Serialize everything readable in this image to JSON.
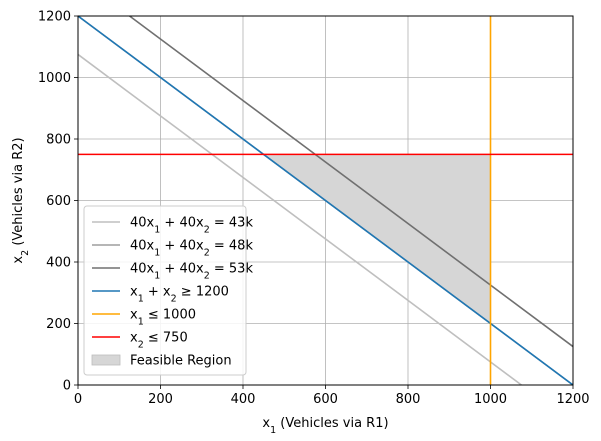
{
  "chart_data": {
    "type": "line",
    "title": "",
    "xlabel": {
      "prefix": "x",
      "sub": "1",
      "suffix": " (Vehicles via R1)"
    },
    "ylabel": {
      "prefix": "x",
      "sub": "2",
      "suffix": " (Vehicles via R2)"
    },
    "xlim": [
      0,
      1200
    ],
    "ylim": [
      0,
      1200
    ],
    "xticks": [
      0,
      200,
      400,
      600,
      800,
      1000,
      1200
    ],
    "yticks": [
      0,
      200,
      400,
      600,
      800,
      1000,
      1200
    ],
    "grid": true,
    "legend_position": "lower-left",
    "series": [
      {
        "kind": "isoline",
        "c": 43000,
        "color": "#bfbfbf",
        "label": [
          {
            "t": "40x"
          },
          {
            "s": "1"
          },
          {
            "t": " + 40x"
          },
          {
            "s": "2"
          },
          {
            "t": " = 43k"
          }
        ]
      },
      {
        "kind": "isoline",
        "c": 48000,
        "color": "#9e9e9e",
        "label": [
          {
            "t": "40x"
          },
          {
            "s": "1"
          },
          {
            "t": " + 40x"
          },
          {
            "s": "2"
          },
          {
            "t": " = 48k"
          }
        ]
      },
      {
        "kind": "isoline",
        "c": 53000,
        "color": "#707070",
        "label": [
          {
            "t": "40x"
          },
          {
            "s": "1"
          },
          {
            "t": " + 40x"
          },
          {
            "s": "2"
          },
          {
            "t": " = 53k"
          }
        ]
      },
      {
        "kind": "sum",
        "c": 1200,
        "color": "#1f77b4",
        "label": [
          {
            "t": "x"
          },
          {
            "s": "1"
          },
          {
            "t": " + x"
          },
          {
            "s": "2"
          },
          {
            "t": " ≥ 1200"
          }
        ]
      },
      {
        "kind": "vline",
        "x": 1000,
        "color": "#ffa500",
        "label": [
          {
            "t": "x"
          },
          {
            "s": "1"
          },
          {
            "t": " ≤ 1000"
          }
        ]
      },
      {
        "kind": "hline",
        "y": 750,
        "color": "#ff0000",
        "label": [
          {
            "t": "x"
          },
          {
            "s": "2"
          },
          {
            "t": " ≤ 750"
          }
        ]
      }
    ],
    "feasible_region": {
      "label": "Feasible Region",
      "color": "#d6d6d6",
      "vertices": [
        [
          450,
          750
        ],
        [
          1000,
          750
        ],
        [
          1000,
          200
        ]
      ]
    }
  }
}
